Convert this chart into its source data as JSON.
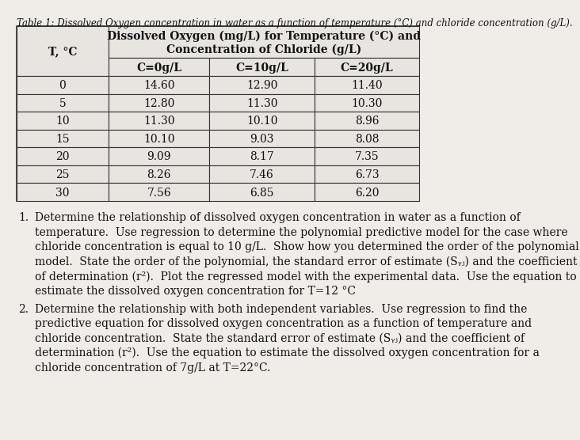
{
  "title_italic": "Table 1: Dissolved Oxygen concentration in water as a function of temperature (°C) and chloride concentration (g/L).",
  "table_header_bold": "Dissolved Oxygen (mg/L) for Temperature (°C) and\nConcentration of Chloride (g/L)",
  "col_headers": [
    "T, °C",
    "C=0g/L",
    "C=10g/L",
    "C=20g/L"
  ],
  "rows": [
    [
      "0",
      "14.60",
      "12.90",
      "11.40"
    ],
    [
      "5",
      "12.80",
      "11.30",
      "10.30"
    ],
    [
      "10",
      "11.30",
      "10.10",
      "8.96"
    ],
    [
      "15",
      "10.10",
      "9.03",
      "8.08"
    ],
    [
      "20",
      "9.09",
      "8.17",
      "7.35"
    ],
    [
      "25",
      "8.26",
      "7.46",
      "6.73"
    ],
    [
      "30",
      "7.56",
      "6.85",
      "6.20"
    ]
  ],
  "text1_number": "1.",
  "text1_body": "Determine the relationship of dissolved oxygen concentration in water as a function of temperature.  Use regression to determine the polynomial predictive model for the case where chloride concentration is equal to 10 g/L.  Show how you determined the order of the polynomial model.  State the order of the polynomial, the standard error of estimate (Sᵧⱼ) and the coefficient of determination (r²).  Plot the regressed model with the experimental data.  Use the equation to estimate the dissolved oxygen concentration for T=12 °C",
  "text2_number": "2.",
  "text2_body": "Determine the relationship with both independent variables.  Use regression to find the predictive equation for dissolved oxygen concentration as a function of temperature and chloride concentration.  State the standard error of estimate (Sᵧⱼ) and the coefficient of determination (r²).  Use the equation to estimate the dissolved oxygen concentration for a chloride concentration of 7g/L at T=22°C.",
  "bg_color": "#f0ece8",
  "table_bg": "#e8e4e0",
  "border_color": "#333333",
  "text_color": "#111111",
  "title_fontsize": 8.5,
  "table_header_fontsize": 10,
  "col_header_fontsize": 10,
  "cell_fontsize": 10,
  "body_fontsize": 10
}
